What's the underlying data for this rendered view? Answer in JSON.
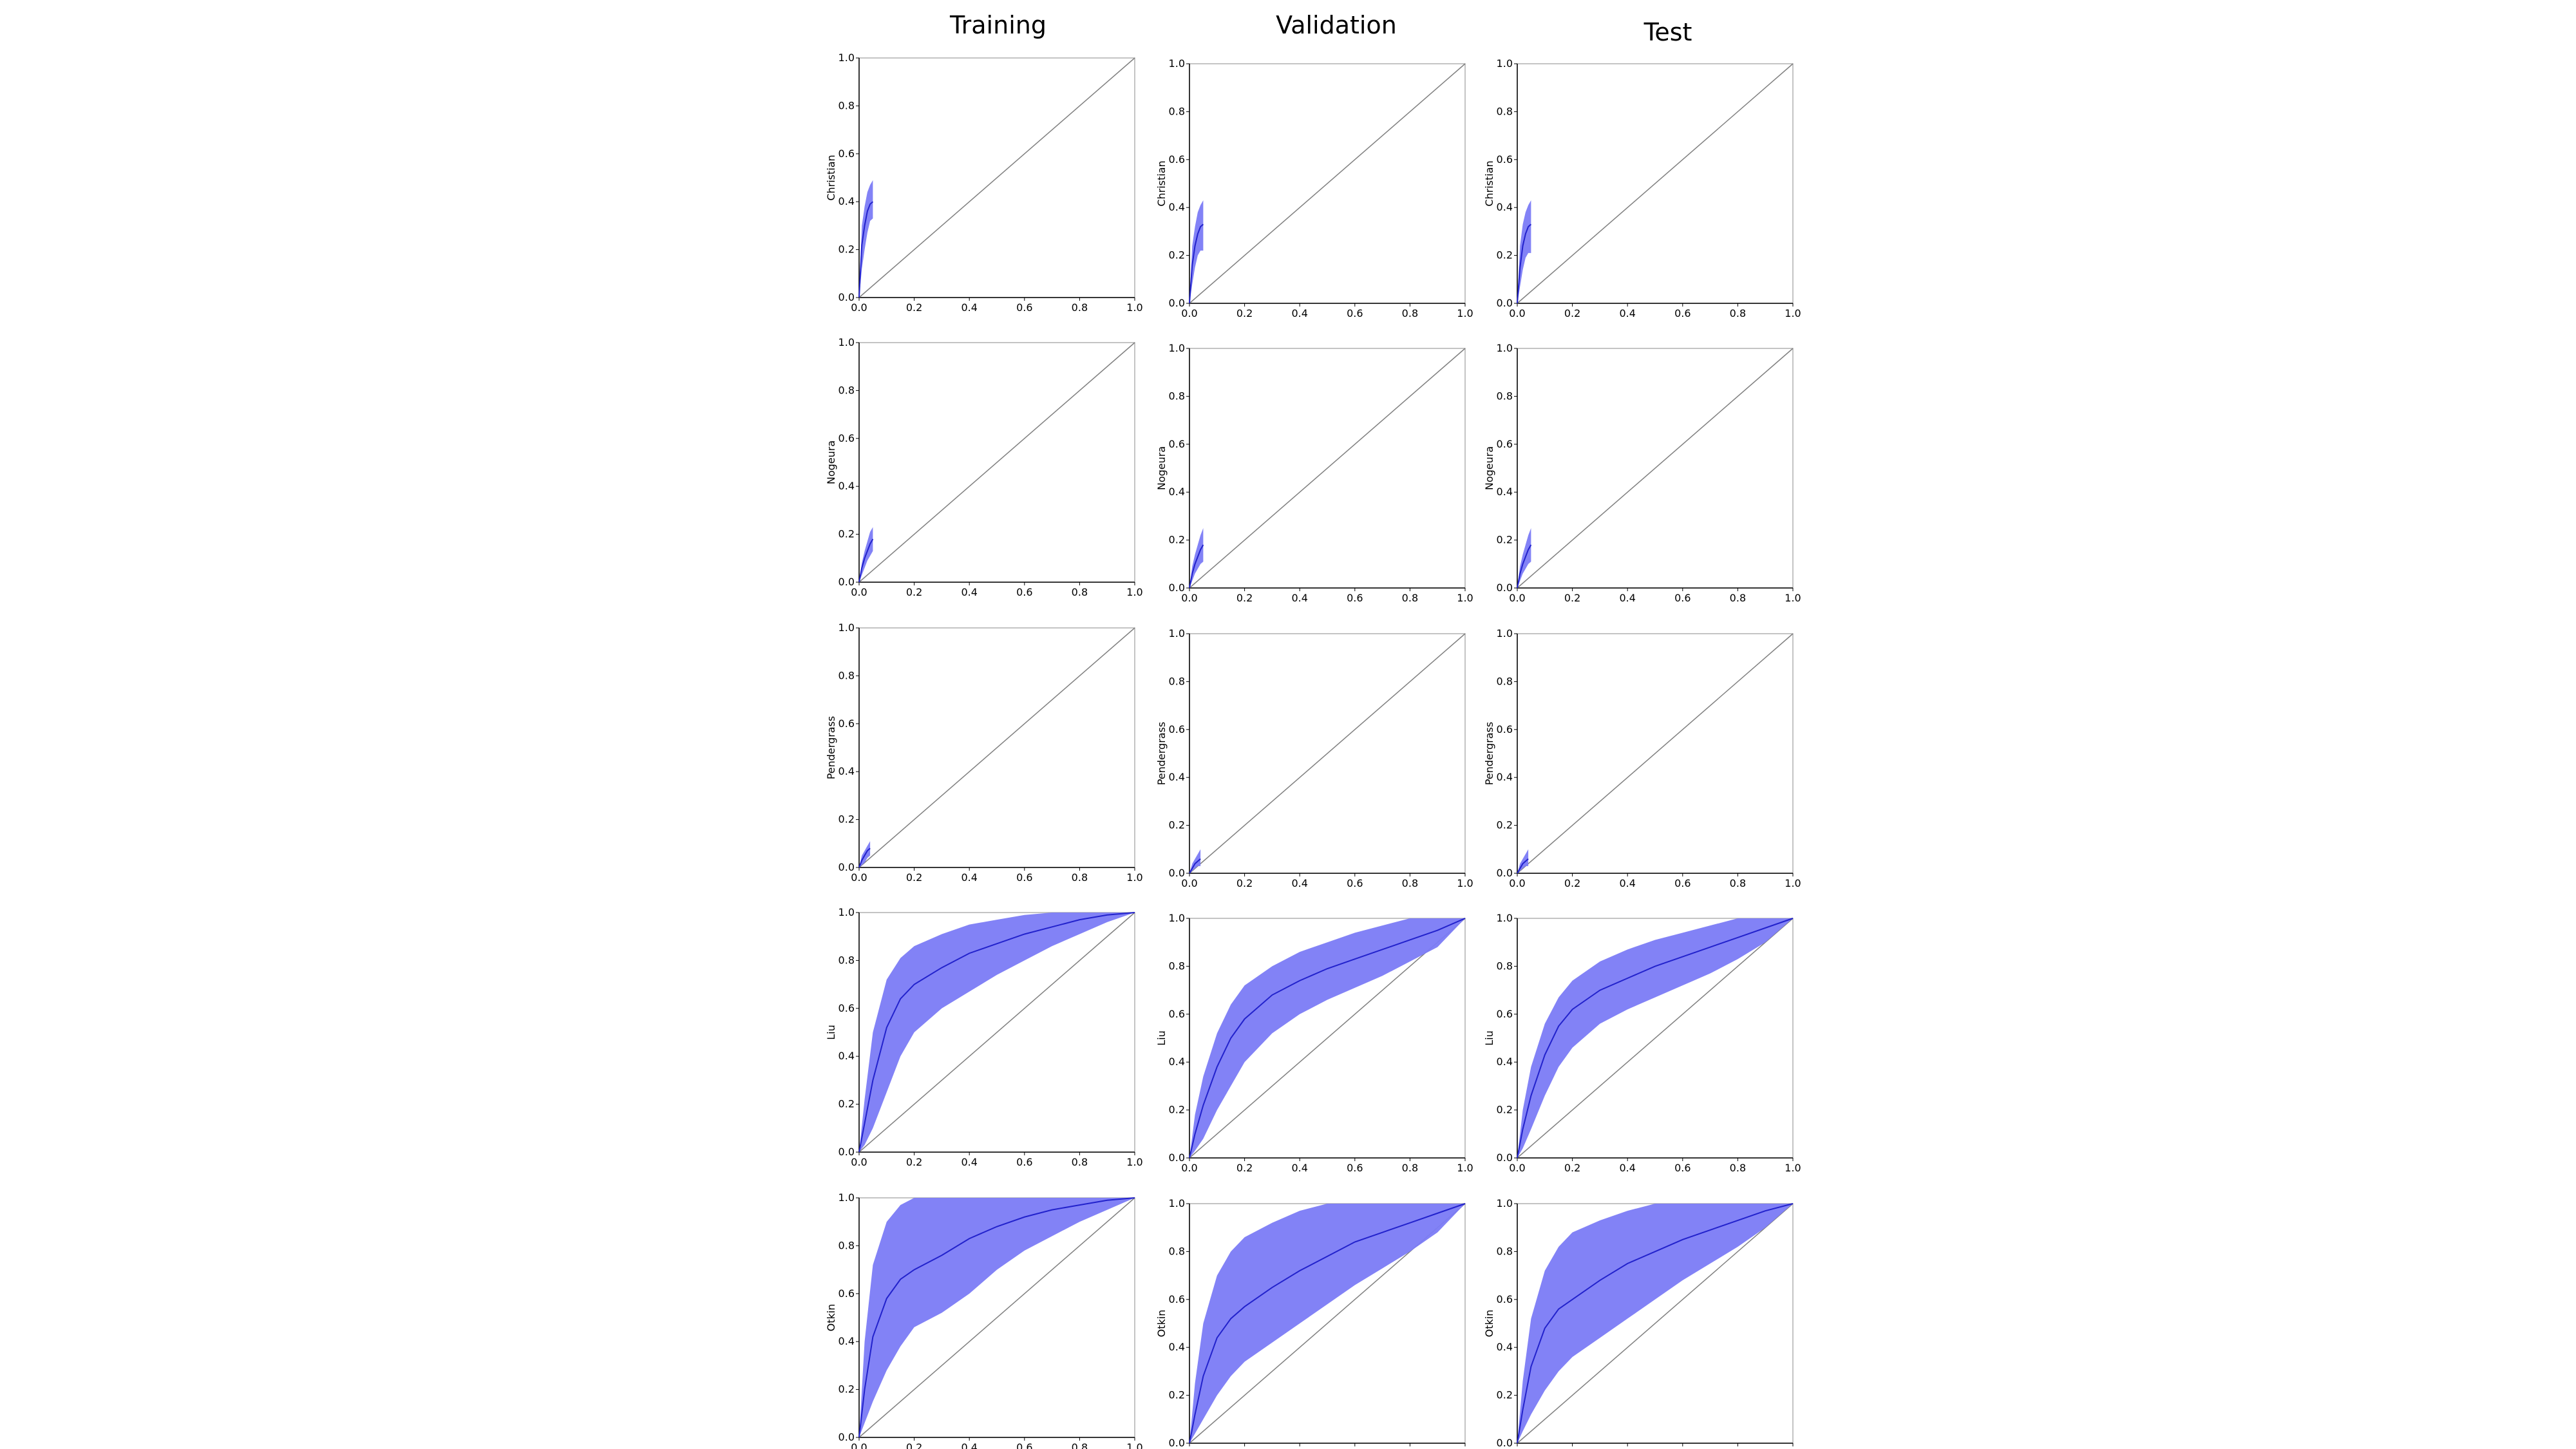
{
  "columns": [
    "Training",
    "Validation",
    "Test"
  ],
  "rows": [
    "Christian",
    "Nogeura",
    "Pendergrass",
    "Liu",
    "Otkin"
  ],
  "chart_data": {
    "type": "line",
    "layout": "grid of small multiples, 5 rows x 3 columns",
    "xlim": [
      0,
      1
    ],
    "ylim": [
      0,
      1
    ],
    "xticks": [
      "0.0",
      "0.2",
      "0.4",
      "0.6",
      "0.8",
      "1.0"
    ],
    "yticks": [
      "0.0",
      "0.2",
      "0.4",
      "0.6",
      "0.8",
      "1.0"
    ],
    "reference_line": {
      "x": [
        0,
        1
      ],
      "y": [
        0,
        1
      ],
      "color": "#808080"
    },
    "band_color": "#7b7bf5",
    "line_color": "#2222cc",
    "panels": [
      {
        "row": "Christian",
        "column": "Training",
        "mean": {
          "x": [
            0,
            0.01,
            0.02,
            0.03,
            0.04,
            0.05
          ],
          "y": [
            0,
            0.22,
            0.3,
            0.36,
            0.39,
            0.4
          ]
        },
        "upper": [
          0,
          0.3,
          0.38,
          0.44,
          0.47,
          0.49
        ],
        "lower": [
          0,
          0.12,
          0.2,
          0.27,
          0.32,
          0.33
        ]
      },
      {
        "row": "Christian",
        "column": "Validation",
        "mean": {
          "x": [
            0,
            0.01,
            0.02,
            0.03,
            0.04,
            0.05
          ],
          "y": [
            0,
            0.16,
            0.24,
            0.29,
            0.32,
            0.33
          ]
        },
        "upper": [
          0,
          0.24,
          0.32,
          0.38,
          0.41,
          0.43
        ],
        "lower": [
          0,
          0.08,
          0.15,
          0.2,
          0.22,
          0.22
        ]
      },
      {
        "row": "Christian",
        "column": "Test",
        "mean": {
          "x": [
            0,
            0.01,
            0.02,
            0.03,
            0.04,
            0.05
          ],
          "y": [
            0,
            0.15,
            0.24,
            0.29,
            0.32,
            0.33
          ]
        },
        "upper": [
          0,
          0.24,
          0.33,
          0.38,
          0.41,
          0.43
        ],
        "lower": [
          0,
          0.07,
          0.14,
          0.19,
          0.21,
          0.21
        ]
      },
      {
        "row": "Nogeura",
        "column": "Training",
        "mean": {
          "x": [
            0,
            0.01,
            0.02,
            0.03,
            0.04,
            0.05
          ],
          "y": [
            0,
            0.06,
            0.1,
            0.13,
            0.16,
            0.18
          ]
        },
        "upper": [
          0,
          0.08,
          0.13,
          0.17,
          0.21,
          0.23
        ],
        "lower": [
          0,
          0.03,
          0.06,
          0.09,
          0.11,
          0.13
        ]
      },
      {
        "row": "Nogeura",
        "column": "Validation",
        "mean": {
          "x": [
            0,
            0.01,
            0.02,
            0.03,
            0.04,
            0.05
          ],
          "y": [
            0,
            0.06,
            0.1,
            0.13,
            0.16,
            0.18
          ]
        },
        "upper": [
          0,
          0.09,
          0.14,
          0.18,
          0.22,
          0.25
        ],
        "lower": [
          0,
          0.03,
          0.06,
          0.08,
          0.1,
          0.11
        ]
      },
      {
        "row": "Nogeura",
        "column": "Test",
        "mean": {
          "x": [
            0,
            0.01,
            0.02,
            0.03,
            0.04,
            0.05
          ],
          "y": [
            0,
            0.06,
            0.1,
            0.13,
            0.16,
            0.18
          ]
        },
        "upper": [
          0,
          0.09,
          0.14,
          0.18,
          0.22,
          0.25
        ],
        "lower": [
          0,
          0.03,
          0.06,
          0.08,
          0.1,
          0.11
        ]
      },
      {
        "row": "Pendergrass",
        "column": "Training",
        "mean": {
          "x": [
            0,
            0.01,
            0.02,
            0.03,
            0.04
          ],
          "y": [
            0,
            0.03,
            0.05,
            0.07,
            0.08
          ]
        },
        "upper": [
          0,
          0.05,
          0.07,
          0.09,
          0.11
        ],
        "lower": [
          0,
          0.01,
          0.02,
          0.04,
          0.05
        ]
      },
      {
        "row": "Pendergrass",
        "column": "Validation",
        "mean": {
          "x": [
            0,
            0.01,
            0.02,
            0.03,
            0.04
          ],
          "y": [
            0,
            0.02,
            0.04,
            0.05,
            0.06
          ]
        },
        "upper": [
          0,
          0.04,
          0.06,
          0.08,
          0.1
        ],
        "lower": [
          0,
          0.01,
          0.02,
          0.03,
          0.03
        ]
      },
      {
        "row": "Pendergrass",
        "column": "Test",
        "mean": {
          "x": [
            0,
            0.01,
            0.02,
            0.03,
            0.04
          ],
          "y": [
            0,
            0.02,
            0.04,
            0.05,
            0.06
          ]
        },
        "upper": [
          0,
          0.04,
          0.06,
          0.08,
          0.1
        ],
        "lower": [
          0,
          0.01,
          0.02,
          0.03,
          0.03
        ]
      },
      {
        "row": "Liu",
        "column": "Training",
        "mean": {
          "x": [
            0,
            0.02,
            0.05,
            0.1,
            0.15,
            0.2,
            0.3,
            0.4,
            0.5,
            0.6,
            0.7,
            0.8,
            0.9,
            1.0
          ],
          "y": [
            0,
            0.12,
            0.3,
            0.52,
            0.64,
            0.7,
            0.77,
            0.83,
            0.87,
            0.91,
            0.94,
            0.97,
            0.99,
            1.0
          ]
        },
        "upper": [
          0,
          0.22,
          0.5,
          0.72,
          0.81,
          0.86,
          0.91,
          0.95,
          0.97,
          0.99,
          1.0,
          1.0,
          1.0,
          1.0
        ],
        "lower": [
          0,
          0.03,
          0.1,
          0.25,
          0.4,
          0.5,
          0.6,
          0.67,
          0.74,
          0.8,
          0.86,
          0.91,
          0.96,
          1.0
        ]
      },
      {
        "row": "Liu",
        "column": "Validation",
        "mean": {
          "x": [
            0,
            0.02,
            0.05,
            0.1,
            0.15,
            0.2,
            0.3,
            0.4,
            0.5,
            0.6,
            0.7,
            0.8,
            0.9,
            1.0
          ],
          "y": [
            0,
            0.1,
            0.22,
            0.38,
            0.5,
            0.58,
            0.68,
            0.74,
            0.79,
            0.83,
            0.87,
            0.91,
            0.95,
            1.0
          ]
        },
        "upper": [
          0,
          0.18,
          0.34,
          0.52,
          0.64,
          0.72,
          0.8,
          0.86,
          0.9,
          0.94,
          0.97,
          1.0,
          1.0,
          1.0
        ],
        "lower": [
          0,
          0.03,
          0.08,
          0.2,
          0.3,
          0.4,
          0.52,
          0.6,
          0.66,
          0.71,
          0.76,
          0.82,
          0.88,
          1.0
        ]
      },
      {
        "row": "Liu",
        "column": "Test",
        "mean": {
          "x": [
            0,
            0.02,
            0.05,
            0.1,
            0.15,
            0.2,
            0.3,
            0.4,
            0.5,
            0.6,
            0.7,
            0.8,
            0.9,
            1.0
          ],
          "y": [
            0,
            0.12,
            0.26,
            0.43,
            0.55,
            0.62,
            0.7,
            0.75,
            0.8,
            0.84,
            0.88,
            0.92,
            0.96,
            1.0
          ]
        },
        "upper": [
          0,
          0.2,
          0.38,
          0.56,
          0.67,
          0.74,
          0.82,
          0.87,
          0.91,
          0.94,
          0.97,
          1.0,
          1.0,
          1.0
        ],
        "lower": [
          0,
          0.04,
          0.12,
          0.26,
          0.38,
          0.46,
          0.56,
          0.62,
          0.67,
          0.72,
          0.77,
          0.83,
          0.9,
          1.0
        ]
      },
      {
        "row": "Otkin",
        "column": "Training",
        "mean": {
          "x": [
            0,
            0.02,
            0.05,
            0.1,
            0.15,
            0.2,
            0.3,
            0.4,
            0.5,
            0.6,
            0.7,
            0.8,
            0.9,
            1.0
          ],
          "y": [
            0,
            0.2,
            0.42,
            0.58,
            0.66,
            0.7,
            0.76,
            0.83,
            0.88,
            0.92,
            0.95,
            0.97,
            0.99,
            1.0
          ]
        },
        "upper": [
          0,
          0.4,
          0.72,
          0.9,
          0.97,
          1.0,
          1.0,
          1.0,
          1.0,
          1.0,
          1.0,
          1.0,
          1.0,
          1.0
        ],
        "lower": [
          0,
          0.06,
          0.15,
          0.28,
          0.38,
          0.46,
          0.52,
          0.6,
          0.7,
          0.78,
          0.84,
          0.9,
          0.95,
          1.0
        ]
      },
      {
        "row": "Otkin",
        "column": "Validation",
        "mean": {
          "x": [
            0,
            0.02,
            0.05,
            0.1,
            0.15,
            0.2,
            0.3,
            0.4,
            0.5,
            0.6,
            0.7,
            0.8,
            0.9,
            1.0
          ],
          "y": [
            0,
            0.12,
            0.28,
            0.44,
            0.52,
            0.57,
            0.65,
            0.72,
            0.78,
            0.84,
            0.88,
            0.92,
            0.96,
            1.0
          ]
        },
        "upper": [
          0,
          0.25,
          0.5,
          0.7,
          0.8,
          0.86,
          0.92,
          0.97,
          1.0,
          1.0,
          1.0,
          1.0,
          1.0,
          1.0
        ],
        "lower": [
          0,
          0.04,
          0.1,
          0.2,
          0.28,
          0.34,
          0.42,
          0.5,
          0.58,
          0.66,
          0.73,
          0.8,
          0.88,
          1.0
        ]
      },
      {
        "row": "Otkin",
        "column": "Test",
        "mean": {
          "x": [
            0,
            0.02,
            0.05,
            0.1,
            0.15,
            0.2,
            0.3,
            0.4,
            0.5,
            0.6,
            0.7,
            0.8,
            0.9,
            1.0
          ],
          "y": [
            0,
            0.14,
            0.32,
            0.48,
            0.56,
            0.6,
            0.68,
            0.75,
            0.8,
            0.85,
            0.89,
            0.93,
            0.97,
            1.0
          ]
        },
        "upper": [
          0,
          0.26,
          0.52,
          0.72,
          0.82,
          0.88,
          0.93,
          0.97,
          1.0,
          1.0,
          1.0,
          1.0,
          1.0,
          1.0
        ],
        "lower": [
          0,
          0.05,
          0.12,
          0.22,
          0.3,
          0.36,
          0.44,
          0.52,
          0.6,
          0.68,
          0.75,
          0.82,
          0.9,
          1.0
        ]
      }
    ]
  }
}
